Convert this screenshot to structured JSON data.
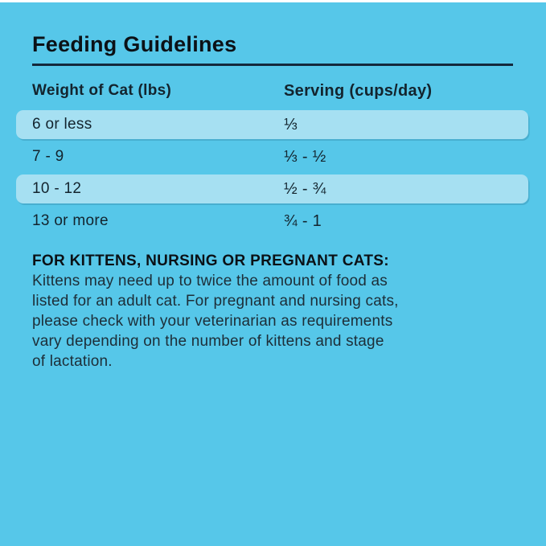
{
  "page": {
    "title": "Feeding Guidelines",
    "colors": {
      "background": "#56C7E9",
      "row_highlight": "#A6E0F2",
      "rule": "#14293C",
      "text": "#13242E"
    }
  },
  "table": {
    "columns": {
      "weight": "Weight of Cat (lbs)",
      "serving": "Serving (cups/day)"
    },
    "rows": [
      {
        "weight": "6 or less",
        "serving": "⅓",
        "highlighted": true
      },
      {
        "weight": "7 - 9",
        "serving": "⅓ - ½",
        "highlighted": false
      },
      {
        "weight": "10 - 12",
        "serving": "½ - ¾",
        "highlighted": true
      },
      {
        "weight": "13 or more",
        "serving": "¾ - 1",
        "highlighted": false
      }
    ]
  },
  "notes": {
    "heading": "FOR KITTENS, NURSING OR PREGNANT CATS:",
    "body": "Kittens may need up to twice the amount of food as\nlisted for an adult cat. For pregnant and nursing cats,\nplease check with your veterinarian as requirements\nvary depending on the number of kittens and stage\nof lactation."
  }
}
